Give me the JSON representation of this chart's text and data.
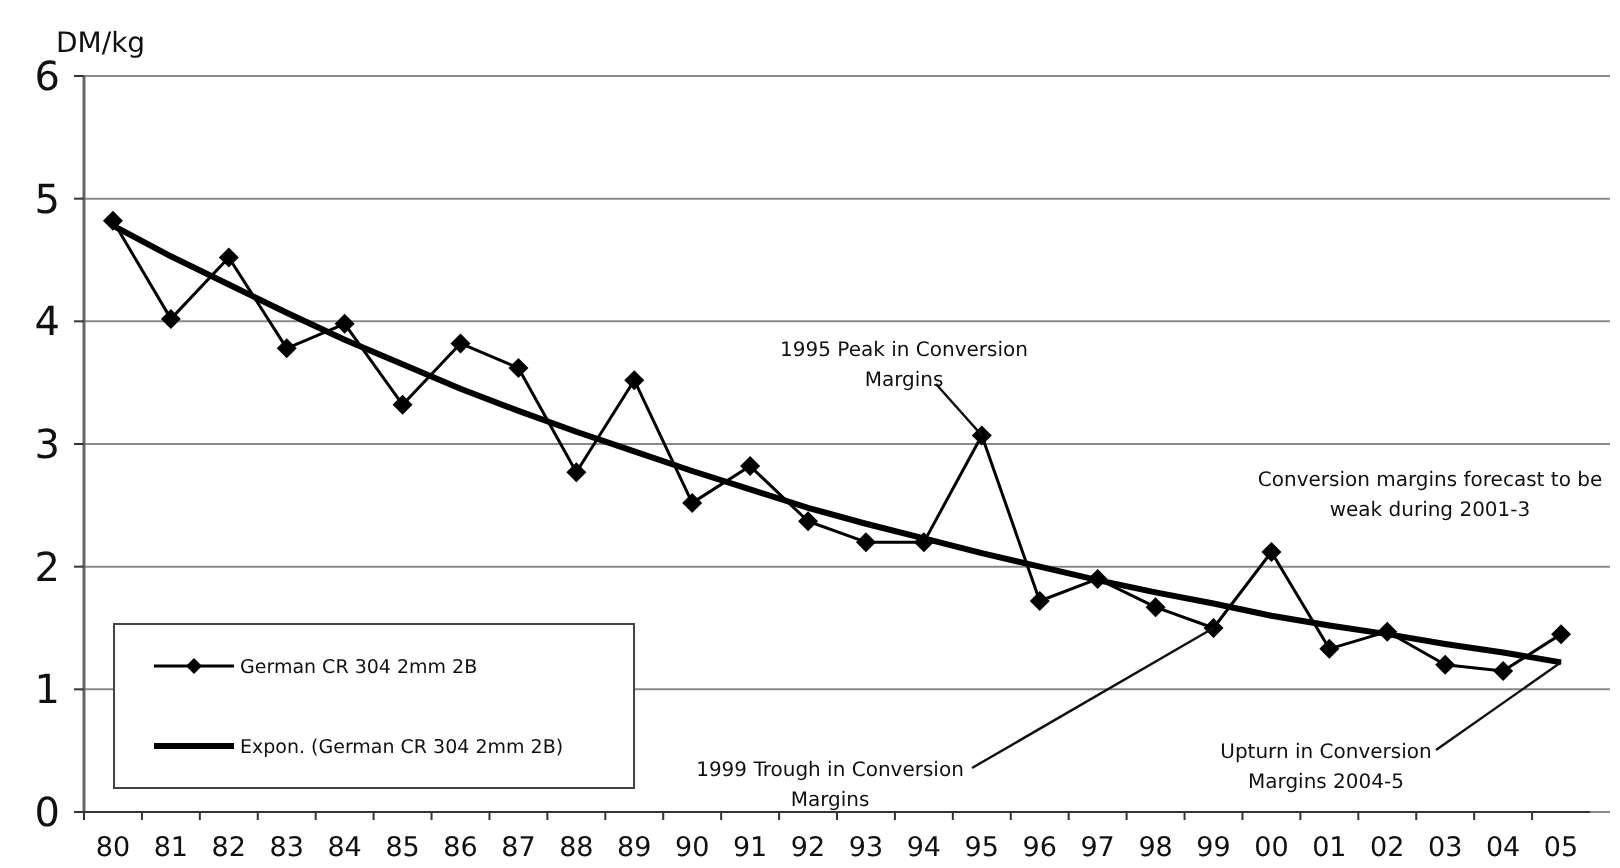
{
  "chart_data": {
    "type": "line",
    "ylabel": "DM/kg",
    "categories": [
      "80",
      "81",
      "82",
      "83",
      "84",
      "85",
      "86",
      "87",
      "88",
      "89",
      "90",
      "91",
      "92",
      "93",
      "94",
      "95",
      "96",
      "97",
      "98",
      "99",
      "00",
      "01",
      "02",
      "03",
      "04",
      "05"
    ],
    "series": [
      {
        "name": "German CR 304 2mm 2B",
        "color": "#000000",
        "marker": "diamond",
        "values": [
          4.82,
          4.02,
          4.52,
          3.78,
          3.98,
          3.32,
          3.82,
          3.62,
          2.77,
          3.52,
          2.52,
          2.82,
          2.37,
          2.2,
          2.2,
          3.07,
          1.72,
          1.9,
          1.67,
          1.5,
          2.12,
          1.33,
          1.47,
          1.2,
          1.15,
          1.45
        ]
      },
      {
        "name": "Expon. (German CR 304 2mm 2B)",
        "color": "#000000",
        "marker": "none",
        "values": [
          4.78,
          4.53,
          4.3,
          4.07,
          3.85,
          3.65,
          3.45,
          3.27,
          3.1,
          2.94,
          2.78,
          2.63,
          2.48,
          2.35,
          2.23,
          2.11,
          2.0,
          1.89,
          1.79,
          1.7,
          1.6,
          1.52,
          1.45,
          1.37,
          1.3,
          1.22
        ]
      }
    ],
    "ylim": [
      0,
      6
    ],
    "yticks": [
      0,
      1,
      2,
      3,
      4,
      5,
      6
    ],
    "grid": "y",
    "legend": "bottom left",
    "line_style": "solid",
    "annotations": [
      {
        "text": "1995 Peak in Conversion Margins",
        "x": "95",
        "y": 3.07
      },
      "Conversion margins forecast to be weak during 2001-3",
      {
        "text": "1999 Trough in Conversion Margins",
        "x": "99",
        "y": 1.5
      },
      {
        "text": "Upturn in Conversion Margins 2004-5",
        "x": "05",
        "y": 1.22
      }
    ]
  }
}
